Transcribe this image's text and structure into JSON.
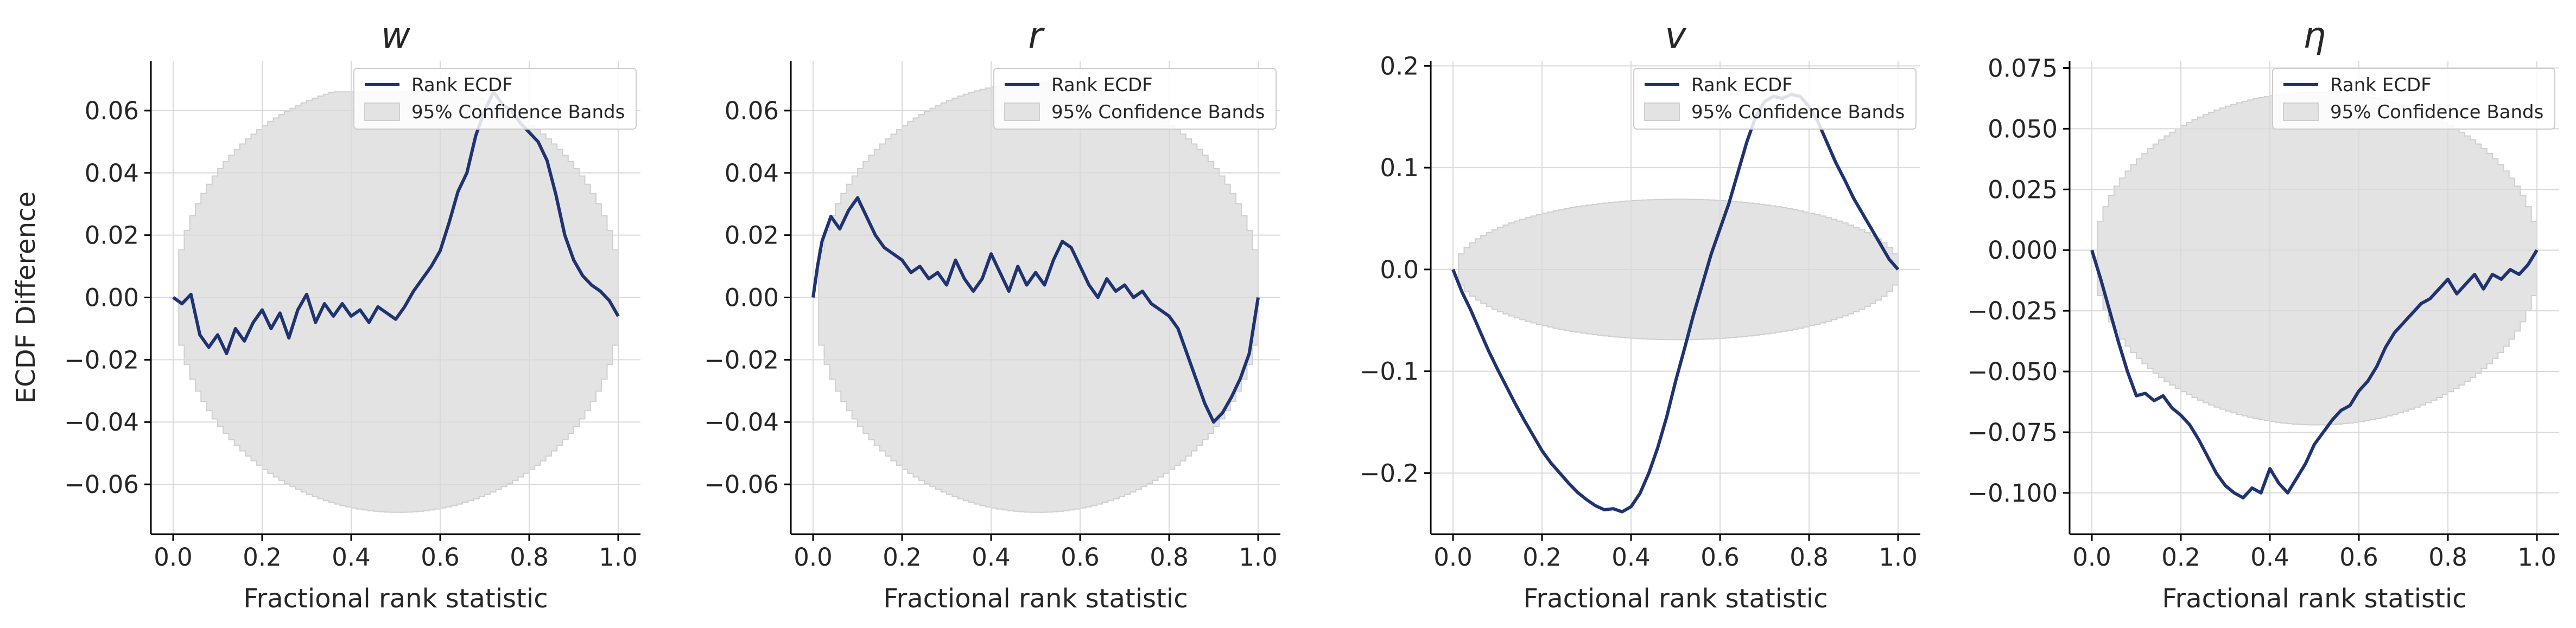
{
  "colors": {
    "line": "#1f3371",
    "band_fill": "#e3e3e3",
    "band_edge": "#cfcfcf",
    "grid": "#d9d9d9",
    "axis": "#000000"
  },
  "chart_data": [
    {
      "type": "line",
      "title": "w",
      "xlabel": "Fractional rank statistic",
      "ylabel": "ECDF Difference",
      "xlim": [
        -0.05,
        1.05
      ],
      "ylim": [
        -0.076,
        0.076
      ],
      "xticks": [
        "0.0",
        "0.2",
        "0.4",
        "0.6",
        "0.8",
        "1.0"
      ],
      "xtick_values": [
        0,
        0.2,
        0.4,
        0.6,
        0.8,
        1.0
      ],
      "yticks": [
        "0.06",
        "0.04",
        "0.02",
        "0.00",
        "−0.02",
        "−0.04",
        "−0.06"
      ],
      "ytick_values": [
        0.06,
        0.04,
        0.02,
        0,
        -0.02,
        -0.04,
        -0.06
      ],
      "grid": true,
      "legend": {
        "position": "top-right",
        "entries": [
          "Rank ECDF",
          "95% Confidence Bands"
        ]
      },
      "band": {
        "center": 0,
        "half_width": 0.069,
        "upper_clip": 0.066
      },
      "series": [
        {
          "name": "Rank ECDF",
          "x": [
            0,
            0.02,
            0.04,
            0.06,
            0.08,
            0.1,
            0.12,
            0.14,
            0.16,
            0.18,
            0.2,
            0.22,
            0.24,
            0.26,
            0.28,
            0.3,
            0.32,
            0.34,
            0.36,
            0.38,
            0.4,
            0.42,
            0.44,
            0.46,
            0.48,
            0.5,
            0.52,
            0.54,
            0.56,
            0.58,
            0.6,
            0.62,
            0.64,
            0.66,
            0.68,
            0.7,
            0.72,
            0.74,
            0.76,
            0.78,
            0.8,
            0.82,
            0.84,
            0.86,
            0.88,
            0.9,
            0.92,
            0.94,
            0.96,
            0.98,
            1.0
          ],
          "y": [
            0,
            -0.002,
            0.001,
            -0.012,
            -0.016,
            -0.012,
            -0.018,
            -0.01,
            -0.014,
            -0.008,
            -0.004,
            -0.01,
            -0.005,
            -0.013,
            -0.004,
            0.001,
            -0.008,
            -0.002,
            -0.006,
            -0.002,
            -0.006,
            -0.004,
            -0.008,
            -0.003,
            -0.005,
            -0.007,
            -0.003,
            0.002,
            0.006,
            0.01,
            0.015,
            0.024,
            0.034,
            0.04,
            0.052,
            0.06,
            0.066,
            0.062,
            0.06,
            0.056,
            0.053,
            0.05,
            0.044,
            0.033,
            0.02,
            0.012,
            0.007,
            0.004,
            0.002,
            -0.001,
            -0.006
          ]
        }
      ]
    },
    {
      "type": "line",
      "title": "r",
      "xlabel": "Fractional rank statistic",
      "ylabel": "",
      "xlim": [
        -0.05,
        1.05
      ],
      "ylim": [
        -0.076,
        0.076
      ],
      "xticks": [
        "0.0",
        "0.2",
        "0.4",
        "0.6",
        "0.8",
        "1.0"
      ],
      "xtick_values": [
        0,
        0.2,
        0.4,
        0.6,
        0.8,
        1.0
      ],
      "yticks": [
        "0.06",
        "0.04",
        "0.02",
        "0.00",
        "−0.02",
        "−0.04",
        "−0.06"
      ],
      "ytick_values": [
        0.06,
        0.04,
        0.02,
        0,
        -0.02,
        -0.04,
        -0.06
      ],
      "grid": true,
      "legend": {
        "position": "top-right",
        "entries": [
          "Rank ECDF",
          "95% Confidence Bands"
        ]
      },
      "band": {
        "center": 0,
        "half_width": 0.069,
        "upper_clip": 0.069
      },
      "series": [
        {
          "name": "Rank ECDF",
          "x": [
            0,
            0.01,
            0.02,
            0.04,
            0.06,
            0.08,
            0.1,
            0.12,
            0.14,
            0.16,
            0.18,
            0.2,
            0.22,
            0.24,
            0.26,
            0.28,
            0.3,
            0.32,
            0.34,
            0.36,
            0.38,
            0.4,
            0.42,
            0.44,
            0.46,
            0.48,
            0.5,
            0.52,
            0.54,
            0.56,
            0.58,
            0.6,
            0.62,
            0.64,
            0.66,
            0.68,
            0.7,
            0.72,
            0.74,
            0.76,
            0.78,
            0.8,
            0.82,
            0.84,
            0.86,
            0.88,
            0.9,
            0.92,
            0.94,
            0.96,
            0.98,
            1.0
          ],
          "y": [
            0,
            0.01,
            0.018,
            0.026,
            0.022,
            0.028,
            0.032,
            0.026,
            0.02,
            0.016,
            0.014,
            0.012,
            0.008,
            0.01,
            0.006,
            0.008,
            0.004,
            0.012,
            0.006,
            0.002,
            0.006,
            0.014,
            0.008,
            0.002,
            0.01,
            0.004,
            0.008,
            0.004,
            0.012,
            0.018,
            0.016,
            0.01,
            0.004,
            0.0,
            0.006,
            0.002,
            0.004,
            0.0,
            0.002,
            -0.002,
            -0.004,
            -0.006,
            -0.01,
            -0.018,
            -0.026,
            -0.034,
            -0.04,
            -0.037,
            -0.032,
            -0.026,
            -0.018,
            0.0
          ]
        }
      ]
    },
    {
      "type": "line",
      "title": "v",
      "xlabel": "Fractional rank statistic",
      "ylabel": "",
      "xlim": [
        -0.05,
        1.05
      ],
      "ylim": [
        -0.26,
        0.205
      ],
      "xticks": [
        "0.0",
        "0.2",
        "0.4",
        "0.6",
        "0.8",
        "1.0"
      ],
      "xtick_values": [
        0,
        0.2,
        0.4,
        0.6,
        0.8,
        1.0
      ],
      "yticks": [
        "0.2",
        "0.1",
        "0.0",
        "−0.1",
        "−0.2"
      ],
      "ytick_values": [
        0.2,
        0.1,
        0,
        -0.1,
        -0.2
      ],
      "grid": true,
      "legend": {
        "position": "top-right",
        "entries": [
          "Rank ECDF",
          "95% Confidence Bands"
        ]
      },
      "band": {
        "center": 0,
        "half_width": 0.069,
        "upper_clip": 0.069
      },
      "series": [
        {
          "name": "Rank ECDF",
          "x": [
            0,
            0.02,
            0.04,
            0.06,
            0.08,
            0.1,
            0.12,
            0.14,
            0.16,
            0.18,
            0.2,
            0.22,
            0.24,
            0.26,
            0.28,
            0.3,
            0.32,
            0.34,
            0.36,
            0.38,
            0.4,
            0.42,
            0.44,
            0.46,
            0.48,
            0.5,
            0.52,
            0.54,
            0.56,
            0.58,
            0.6,
            0.62,
            0.64,
            0.66,
            0.68,
            0.7,
            0.72,
            0.74,
            0.76,
            0.78,
            0.8,
            0.82,
            0.84,
            0.86,
            0.88,
            0.9,
            0.92,
            0.94,
            0.96,
            0.98,
            1.0
          ],
          "y": [
            0,
            -0.022,
            -0.04,
            -0.06,
            -0.08,
            -0.098,
            -0.115,
            -0.132,
            -0.148,
            -0.163,
            -0.178,
            -0.19,
            -0.2,
            -0.21,
            -0.219,
            -0.226,
            -0.232,
            -0.236,
            -0.235,
            -0.238,
            -0.233,
            -0.22,
            -0.2,
            -0.175,
            -0.145,
            -0.11,
            -0.078,
            -0.045,
            -0.015,
            0.015,
            0.04,
            0.065,
            0.095,
            0.125,
            0.15,
            0.165,
            0.17,
            0.168,
            0.172,
            0.17,
            0.16,
            0.145,
            0.125,
            0.105,
            0.088,
            0.07,
            0.055,
            0.04,
            0.025,
            0.01,
            0.0
          ]
        }
      ]
    },
    {
      "type": "line",
      "title": "η",
      "xlabel": "Fractional rank statistic",
      "ylabel": "",
      "xlim": [
        -0.05,
        1.05
      ],
      "ylim": [
        -0.117,
        0.078
      ],
      "xticks": [
        "0.0",
        "0.2",
        "0.4",
        "0.6",
        "0.8",
        "1.0"
      ],
      "xtick_values": [
        0,
        0.2,
        0.4,
        0.6,
        0.8,
        1.0
      ],
      "yticks": [
        "0.075",
        "0.050",
        "0.025",
        "0.000",
        "−0.025",
        "−0.050",
        "−0.075",
        "−0.100"
      ],
      "ytick_values": [
        0.075,
        0.05,
        0.025,
        0,
        -0.025,
        -0.05,
        -0.075,
        -0.1
      ],
      "grid": true,
      "legend": {
        "position": "top-right",
        "entries": [
          "Rank ECDF",
          "95% Confidence Bands"
        ]
      },
      "band": {
        "center": -0.0035,
        "half_width": 0.0685,
        "upper_clip": 0.065
      },
      "series": [
        {
          "name": "Rank ECDF",
          "x": [
            0,
            0.02,
            0.04,
            0.06,
            0.08,
            0.1,
            0.12,
            0.14,
            0.16,
            0.18,
            0.2,
            0.22,
            0.24,
            0.26,
            0.28,
            0.3,
            0.32,
            0.34,
            0.36,
            0.38,
            0.4,
            0.42,
            0.44,
            0.46,
            0.48,
            0.5,
            0.52,
            0.54,
            0.56,
            0.58,
            0.6,
            0.62,
            0.64,
            0.66,
            0.68,
            0.7,
            0.72,
            0.74,
            0.76,
            0.78,
            0.8,
            0.82,
            0.84,
            0.86,
            0.88,
            0.9,
            0.92,
            0.94,
            0.96,
            0.98,
            1.0
          ],
          "y": [
            0,
            -0.012,
            -0.025,
            -0.038,
            -0.05,
            -0.06,
            -0.059,
            -0.062,
            -0.06,
            -0.065,
            -0.068,
            -0.072,
            -0.078,
            -0.085,
            -0.092,
            -0.097,
            -0.1,
            -0.102,
            -0.098,
            -0.1,
            -0.09,
            -0.096,
            -0.1,
            -0.094,
            -0.088,
            -0.08,
            -0.075,
            -0.07,
            -0.066,
            -0.064,
            -0.058,
            -0.054,
            -0.048,
            -0.04,
            -0.034,
            -0.03,
            -0.026,
            -0.022,
            -0.02,
            -0.016,
            -0.012,
            -0.018,
            -0.014,
            -0.01,
            -0.016,
            -0.01,
            -0.012,
            -0.008,
            -0.01,
            -0.006,
            0.0
          ]
        }
      ]
    }
  ]
}
